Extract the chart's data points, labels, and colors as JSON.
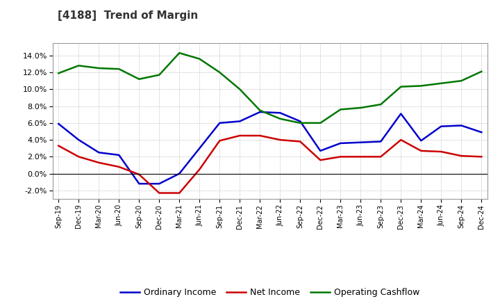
{
  "title": "[4188]  Trend of Margin",
  "x_labels": [
    "Sep-19",
    "Dec-19",
    "Mar-20",
    "Jun-20",
    "Sep-20",
    "Dec-20",
    "Mar-21",
    "Jun-21",
    "Sep-21",
    "Dec-21",
    "Mar-22",
    "Jun-22",
    "Sep-22",
    "Dec-22",
    "Mar-23",
    "Jun-23",
    "Sep-23",
    "Dec-23",
    "Mar-24",
    "Jun-24",
    "Sep-24",
    "Dec-24"
  ],
  "ordinary_income": [
    5.9,
    4.0,
    2.5,
    2.2,
    -1.2,
    -1.2,
    0.0,
    3.0,
    6.0,
    6.2,
    7.3,
    7.2,
    6.2,
    2.7,
    3.6,
    3.7,
    3.8,
    7.1,
    3.9,
    5.6,
    5.7,
    4.9
  ],
  "net_income": [
    3.3,
    2.0,
    1.3,
    0.8,
    -0.1,
    -2.3,
    -2.3,
    0.5,
    3.9,
    4.5,
    4.5,
    4.0,
    3.8,
    1.6,
    2.0,
    2.0,
    2.0,
    4.0,
    2.7,
    2.6,
    2.1,
    2.0
  ],
  "operating_cashflow": [
    11.9,
    12.8,
    12.5,
    12.4,
    11.2,
    11.7,
    14.3,
    13.6,
    12.0,
    10.0,
    7.5,
    6.5,
    6.0,
    6.0,
    7.6,
    7.8,
    8.2,
    10.3,
    10.4,
    10.7,
    11.0,
    12.1
  ],
  "ylim": [
    -3.0,
    15.5
  ],
  "yticks": [
    -2.0,
    0.0,
    2.0,
    4.0,
    6.0,
    8.0,
    10.0,
    12.0,
    14.0
  ],
  "color_ordinary": "#0000CC",
  "color_net": "#CC0000",
  "color_cashflow": "#007700",
  "background_color": "#FFFFFF",
  "grid_color": "#AAAAAA",
  "legend_labels": [
    "Ordinary Income",
    "Net Income",
    "Operating Cashflow"
  ]
}
